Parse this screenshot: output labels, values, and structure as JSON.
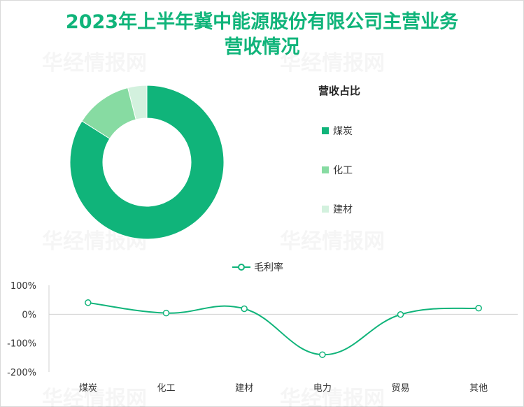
{
  "title": "2023年上半年冀中能源股份有限公司主营业务营收情况",
  "title_line1": "2023年上半年冀中能源股份有限公司主营业务",
  "title_line2": "营收情况",
  "watermark_text": "华经情报网",
  "colors": {
    "title": "#10b47a",
    "coal": "#10b47a",
    "chemical": "#87dba2",
    "building": "#d3f1de",
    "line": "#10b47a"
  },
  "chart_data": [
    {
      "type": "pie",
      "variant": "donut",
      "title": "营收占比",
      "legend_placement": "right",
      "categories": [
        "煤炭",
        "化工",
        "建材"
      ],
      "values": [
        84,
        12,
        4
      ]
    },
    {
      "type": "line",
      "legend_placement": "top",
      "categories": [
        "煤炭",
        "化工",
        "建材",
        "电力",
        "贸易",
        "其他"
      ],
      "series": [
        {
          "name": "毛利率",
          "values": [
            40,
            4,
            19,
            -140,
            -1,
            21
          ]
        }
      ],
      "y_ticks": [
        "100%",
        "0%",
        "-100%",
        "-200%"
      ],
      "ylim": [
        -200,
        100
      ],
      "grid": false
    }
  ]
}
